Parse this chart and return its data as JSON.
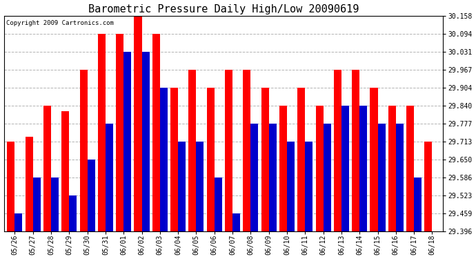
{
  "title": "Barometric Pressure Daily High/Low 20090619",
  "copyright": "Copyright 2009 Cartronics.com",
  "dates": [
    "05/26",
    "05/27",
    "05/28",
    "05/29",
    "05/30",
    "05/31",
    "06/01",
    "06/02",
    "06/03",
    "06/04",
    "06/05",
    "06/06",
    "06/07",
    "06/08",
    "06/09",
    "06/10",
    "06/11",
    "06/12",
    "06/13",
    "06/14",
    "06/15",
    "06/16",
    "06/17",
    "06/18"
  ],
  "highs": [
    29.713,
    29.73,
    29.84,
    29.82,
    29.967,
    30.094,
    30.094,
    30.158,
    30.094,
    29.904,
    29.967,
    29.904,
    29.967,
    29.967,
    29.904,
    29.84,
    29.904,
    29.84,
    29.967,
    29.967,
    29.904,
    29.84,
    29.84,
    29.713
  ],
  "lows": [
    29.459,
    29.586,
    29.586,
    29.523,
    29.65,
    29.777,
    30.031,
    30.031,
    29.904,
    29.713,
    29.713,
    29.586,
    29.459,
    29.777,
    29.777,
    29.713,
    29.713,
    29.777,
    29.84,
    29.84,
    29.777,
    29.777,
    29.586,
    29.396
  ],
  "bar_color_high": "#ff0000",
  "bar_color_low": "#0000cc",
  "bg_color": "#ffffff",
  "grid_color": "#aaaaaa",
  "title_fontsize": 11,
  "copyright_fontsize": 6.5,
  "ymin": 29.396,
  "ymax": 30.158,
  "yticks": [
    29.396,
    29.459,
    29.523,
    29.586,
    29.65,
    29.713,
    29.777,
    29.84,
    29.904,
    29.967,
    30.031,
    30.094,
    30.158
  ]
}
